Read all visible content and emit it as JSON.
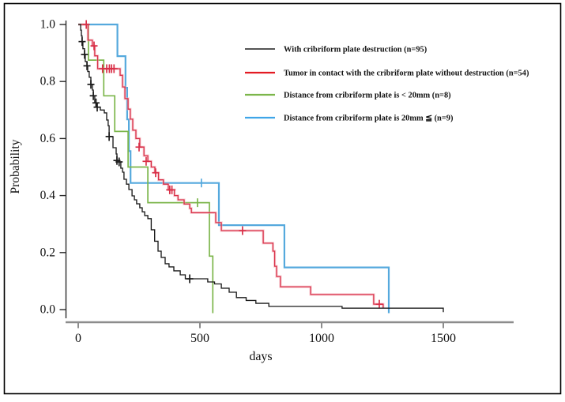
{
  "figure": {
    "background": "#ffffff",
    "border_color": "#000000"
  },
  "axes": {
    "ylabel": "Probability",
    "xlabel": "days",
    "y_ticks": [
      "1.0",
      "0.8",
      "0.6",
      "0.4",
      "0.2",
      "0.0"
    ],
    "y_tick_values": [
      1.0,
      0.8,
      0.6,
      0.4,
      0.2,
      0.0
    ],
    "x_ticks": [
      "0",
      "500",
      "1000",
      "1500"
    ],
    "x_tick_values": [
      0,
      500,
      1000,
      1500
    ],
    "y_axis_color": "#2a2a2a",
    "x_axis_color": "#8c8c8c"
  },
  "legend": {
    "position": "upper-right-inside",
    "items": [
      {
        "label": "With cribriform plate destruction (n=95)",
        "color": "#1b1b1b"
      },
      {
        "label": "Tumor in contact with the cribriform plate without destruction (n=54)",
        "color": "#e31b23"
      },
      {
        "label": "Distance from cribriform plate is < 20mm (n=8)",
        "color": "#7cb64b"
      },
      {
        "label": "Distance from cribriform plate is 20mm ≦ (n=9)",
        "color": "#3fa5e8"
      }
    ]
  },
  "chart_data": {
    "type": "line",
    "subtype": "kaplan-meier-step",
    "title": "",
    "xlabel": "days",
    "ylabel": "Probability",
    "xlim": [
      0,
      1500
    ],
    "ylim": [
      0,
      1.0
    ],
    "grid": false,
    "legend_position": "upper-right-inside",
    "series": [
      {
        "name": "Distance from cribriform plate is 20mm ≦ (n=9)",
        "n": 9,
        "color": "#55a9dd",
        "width": 2.2,
        "halo": false,
        "censor_style": "tick",
        "points": [
          [
            0,
            1.0
          ],
          [
            161,
            0.889
          ],
          [
            194,
            0.778
          ],
          [
            201,
            0.667
          ],
          [
            208,
            0.556
          ],
          [
            215,
            0.444
          ],
          [
            578,
            0.296
          ],
          [
            847,
            0.148
          ],
          [
            1276,
            0.0
          ]
        ],
        "censors": [
          [
            506,
            0.444
          ]
        ]
      },
      {
        "name": "Distance from cribriform plate is < 20mm (n=8)",
        "n": 8,
        "color": "#7cb64b",
        "width": 1.7,
        "halo": false,
        "censor_style": "tick",
        "points": [
          [
            0,
            1.0
          ],
          [
            42,
            0.875
          ],
          [
            105,
            0.75
          ],
          [
            150,
            0.625
          ],
          [
            205,
            0.5
          ],
          [
            286,
            0.375
          ],
          [
            539,
            0.1875
          ],
          [
            553,
            0.0
          ]
        ],
        "censors": [
          [
            490,
            0.375
          ]
        ]
      },
      {
        "name": "Tumor in contact with the cribriform plate without destruction (n=54)",
        "n": 54,
        "color": "#d93048",
        "width": 1.3,
        "halo": true,
        "halo_color": "#f2a9b4",
        "censor_style": "plus",
        "end_day": 1253,
        "end_tick": true,
        "points": [
          [
            0,
            1.0
          ],
          [
            40,
            0.945
          ],
          [
            58,
            0.925
          ],
          [
            68,
            0.89
          ],
          [
            80,
            0.845
          ],
          [
            172,
            0.822
          ],
          [
            182,
            0.781
          ],
          [
            192,
            0.74
          ],
          [
            205,
            0.703
          ],
          [
            214,
            0.668
          ],
          [
            224,
            0.629
          ],
          [
            237,
            0.6
          ],
          [
            253,
            0.57
          ],
          [
            270,
            0.54
          ],
          [
            286,
            0.52
          ],
          [
            300,
            0.5
          ],
          [
            315,
            0.48
          ],
          [
            330,
            0.455
          ],
          [
            350,
            0.44
          ],
          [
            370,
            0.42
          ],
          [
            395,
            0.4
          ],
          [
            410,
            0.385
          ],
          [
            435,
            0.37
          ],
          [
            458,
            0.355
          ],
          [
            465,
            0.34
          ],
          [
            565,
            0.305
          ],
          [
            588,
            0.277
          ],
          [
            760,
            0.233
          ],
          [
            800,
            0.205
          ],
          [
            807,
            0.152
          ],
          [
            815,
            0.116
          ],
          [
            831,
            0.08
          ],
          [
            955,
            0.053
          ],
          [
            1214,
            0.019
          ]
        ],
        "censors": [
          [
            33,
            1.0
          ],
          [
            65,
            0.925
          ],
          [
            100,
            0.845
          ],
          [
            117,
            0.845
          ],
          [
            128,
            0.845
          ],
          [
            137,
            0.845
          ],
          [
            147,
            0.845
          ],
          [
            250,
            0.57
          ],
          [
            279,
            0.52
          ],
          [
            318,
            0.48
          ],
          [
            376,
            0.42
          ],
          [
            385,
            0.42
          ],
          [
            675,
            0.277
          ],
          [
            1237,
            0.019
          ]
        ]
      },
      {
        "name": "With cribriform plate destruction (n=95)",
        "n": 95,
        "color": "#1b1b1b",
        "width": 1.35,
        "halo": false,
        "censor_style": "plus",
        "end_day": 1500,
        "end_tick": true,
        "points": [
          [
            0,
            1.0
          ],
          [
            10,
            0.98
          ],
          [
            13,
            0.96
          ],
          [
            16,
            0.94
          ],
          [
            19,
            0.915
          ],
          [
            26,
            0.895
          ],
          [
            29,
            0.87
          ],
          [
            36,
            0.855
          ],
          [
            39,
            0.835
          ],
          [
            45,
            0.815
          ],
          [
            52,
            0.79
          ],
          [
            58,
            0.77
          ],
          [
            62,
            0.75
          ],
          [
            68,
            0.725
          ],
          [
            75,
            0.71
          ],
          [
            91,
            0.7
          ],
          [
            107,
            0.69
          ],
          [
            117,
            0.665
          ],
          [
            123,
            0.645
          ],
          [
            127,
            0.607
          ],
          [
            143,
            0.568
          ],
          [
            156,
            0.546
          ],
          [
            159,
            0.523
          ],
          [
            166,
            0.518
          ],
          [
            175,
            0.496
          ],
          [
            182,
            0.482
          ],
          [
            188,
            0.457
          ],
          [
            198,
            0.44
          ],
          [
            208,
            0.421
          ],
          [
            221,
            0.399
          ],
          [
            231,
            0.385
          ],
          [
            240,
            0.371
          ],
          [
            253,
            0.357
          ],
          [
            263,
            0.343
          ],
          [
            273,
            0.33
          ],
          [
            286,
            0.319
          ],
          [
            300,
            0.28
          ],
          [
            314,
            0.24
          ],
          [
            328,
            0.205
          ],
          [
            341,
            0.183
          ],
          [
            357,
            0.161
          ],
          [
            373,
            0.15
          ],
          [
            393,
            0.136
          ],
          [
            419,
            0.122
          ],
          [
            440,
            0.108
          ],
          [
            532,
            0.097
          ],
          [
            560,
            0.09
          ],
          [
            588,
            0.075
          ],
          [
            620,
            0.061
          ],
          [
            650,
            0.042
          ],
          [
            690,
            0.032
          ],
          [
            730,
            0.022
          ],
          [
            783,
            0.011
          ],
          [
            1084,
            0.005
          ]
        ],
        "censors": [
          [
            16,
            0.94
          ],
          [
            26,
            0.895
          ],
          [
            36,
            0.855
          ],
          [
            52,
            0.79
          ],
          [
            62,
            0.75
          ],
          [
            73,
            0.725
          ],
          [
            78,
            0.71
          ],
          [
            127,
            0.607
          ],
          [
            159,
            0.523
          ],
          [
            168,
            0.518
          ],
          [
            458,
            0.108
          ]
        ]
      }
    ]
  }
}
